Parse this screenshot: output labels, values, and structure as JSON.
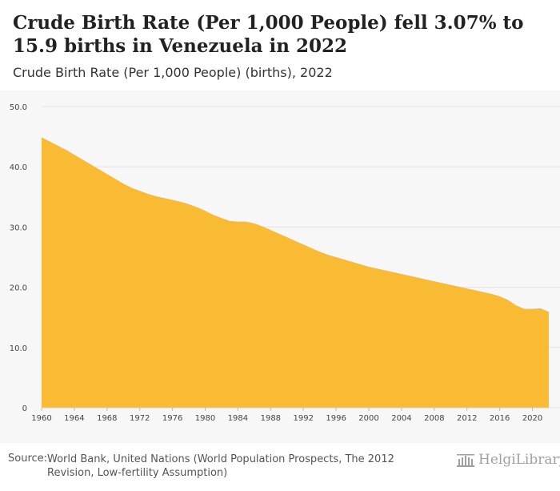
{
  "header": {
    "title": "Crude Birth Rate (Per 1,000 People) fell 3.07% to 15.9 births in Venezuela in 2022",
    "subtitle": "Crude Birth Rate (Per 1,000 People) (births), 2022"
  },
  "footer": {
    "source_label": "Source:",
    "source_text": "World Bank, United Nations (World Population Prospects, The 2012 Revision, Low-fertility Assumption)",
    "logo_text": "HelgiLibrary"
  },
  "colors": {
    "fill": "#f9bb33",
    "grid": "#e3e3e3",
    "axis_text": "#444444"
  },
  "chart_data": {
    "type": "area",
    "title": "Crude Birth Rate (Per 1,000 People) (births), 2022",
    "xlabel": "",
    "ylabel": "",
    "ylim": [
      0,
      50
    ],
    "yticks": [
      0,
      10,
      20,
      30,
      40,
      50
    ],
    "ytick_labels": [
      "0",
      "10.0",
      "20.0",
      "30.0",
      "40.0",
      "50.0"
    ],
    "xticks": [
      1960,
      1964,
      1968,
      1972,
      1976,
      1980,
      1984,
      1988,
      1992,
      1996,
      2000,
      2004,
      2008,
      2012,
      2016,
      2020
    ],
    "x": [
      1960,
      1961,
      1962,
      1963,
      1964,
      1965,
      1966,
      1967,
      1968,
      1969,
      1970,
      1971,
      1972,
      1973,
      1974,
      1975,
      1976,
      1977,
      1978,
      1979,
      1980,
      1981,
      1982,
      1983,
      1984,
      1985,
      1986,
      1987,
      1988,
      1989,
      1990,
      1991,
      1992,
      1993,
      1994,
      1995,
      1996,
      1997,
      1998,
      1999,
      2000,
      2001,
      2002,
      2003,
      2004,
      2005,
      2006,
      2007,
      2008,
      2009,
      2010,
      2011,
      2012,
      2013,
      2014,
      2015,
      2016,
      2017,
      2018,
      2019,
      2020,
      2021,
      2022
    ],
    "values": [
      44.9,
      44.2,
      43.5,
      42.8,
      42.0,
      41.2,
      40.4,
      39.6,
      38.8,
      38.0,
      37.2,
      36.5,
      36.0,
      35.5,
      35.1,
      34.8,
      34.5,
      34.2,
      33.8,
      33.3,
      32.7,
      32.0,
      31.5,
      31.0,
      30.9,
      30.9,
      30.6,
      30.1,
      29.5,
      28.9,
      28.3,
      27.7,
      27.1,
      26.5,
      25.9,
      25.4,
      25.0,
      24.6,
      24.2,
      23.8,
      23.4,
      23.1,
      22.8,
      22.5,
      22.2,
      21.9,
      21.6,
      21.3,
      21.0,
      20.7,
      20.4,
      20.1,
      19.8,
      19.5,
      19.2,
      18.9,
      18.5,
      17.9,
      17.0,
      16.4,
      16.4,
      16.5,
      15.9
    ]
  }
}
